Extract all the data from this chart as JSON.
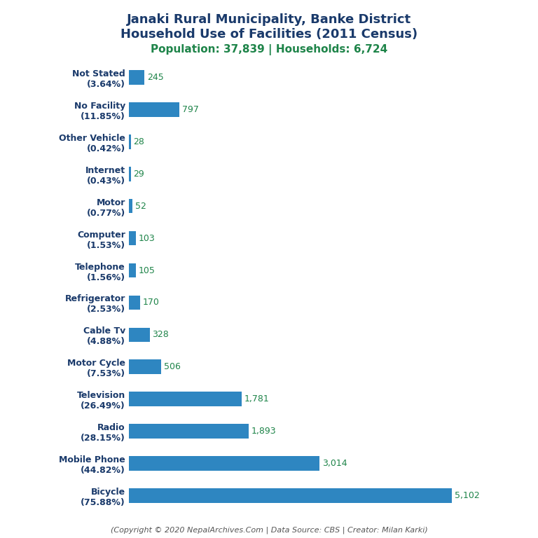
{
  "title_line1": "Janaki Rural Municipality, Banke District",
  "title_line2": "Household Use of Facilities (2011 Census)",
  "subtitle": "Population: 37,839 | Households: 6,724",
  "footer": "(Copyright © 2020 NepalArchives.Com | Data Source: CBS | Creator: Milan Karki)",
  "categories": [
    "Bicycle\n(75.88%)",
    "Mobile Phone\n(44.82%)",
    "Radio\n(28.15%)",
    "Television\n(26.49%)",
    "Motor Cycle\n(7.53%)",
    "Cable Tv\n(4.88%)",
    "Refrigerator\n(2.53%)",
    "Telephone\n(1.56%)",
    "Computer\n(1.53%)",
    "Motor\n(0.77%)",
    "Internet\n(0.43%)",
    "Other Vehicle\n(0.42%)",
    "No Facility\n(11.85%)",
    "Not Stated\n(3.64%)"
  ],
  "values": [
    5102,
    3014,
    1893,
    1781,
    506,
    328,
    170,
    105,
    103,
    52,
    29,
    28,
    797,
    245
  ],
  "bar_color": "#2e86c1",
  "value_color": "#1e8449",
  "title_color": "#1a3a6b",
  "subtitle_color": "#1e8449",
  "footer_color": "#555555",
  "background_color": "#ffffff",
  "xlim": [
    0,
    5700
  ],
  "title_fontsize": 13,
  "subtitle_fontsize": 11,
  "label_fontsize": 9,
  "value_fontsize": 9,
  "footer_fontsize": 8
}
